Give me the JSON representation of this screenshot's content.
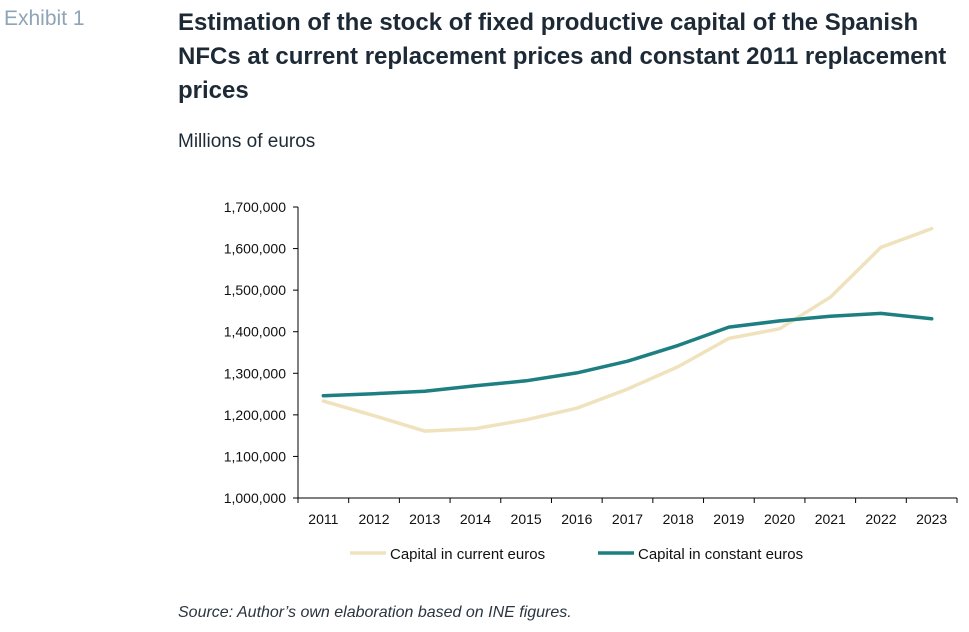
{
  "header": {
    "exhibit_label": "Exhibit 1",
    "title": "Estimation of the stock of fixed productive capital of the Spanish NFCs at current replacement prices and constant 2011 replacement prices",
    "units": "Millions of euros"
  },
  "footer": {
    "source": "Source: Author’s own elaboration based on INE figures."
  },
  "colors": {
    "current": "#efe2bd",
    "constant": "#1d7f82",
    "axis": "#000000"
  },
  "chart_data": {
    "type": "line",
    "title": "Estimation of the stock of fixed productive capital of the Spanish NFCs at current replacement prices and constant 2011 replacement prices",
    "ylabel": "Millions of euros",
    "xlabel": "",
    "x": [
      "2011",
      "2012",
      "2013",
      "2014",
      "2015",
      "2016",
      "2017",
      "2018",
      "2019",
      "2020",
      "2021",
      "2022",
      "2023"
    ],
    "ylim": [
      1000000,
      1700000
    ],
    "yticks": [
      1000000,
      1100000,
      1200000,
      1300000,
      1400000,
      1500000,
      1600000,
      1700000
    ],
    "ytick_labels": [
      "1,000,000",
      "1,100,000",
      "1,200,000",
      "1,300,000",
      "1,400,000",
      "1,500,000",
      "1,600,000",
      "1,700,000"
    ],
    "grid": false,
    "legend_position": "bottom",
    "series": [
      {
        "name": "Capital in current euros",
        "color": "#efe2bd",
        "values": [
          1233000,
          1198000,
          1161000,
          1167000,
          1188000,
          1216000,
          1262000,
          1316000,
          1384000,
          1407000,
          1483000,
          1603000,
          1648000
        ]
      },
      {
        "name": "Capital in constant euros",
        "color": "#1d7f82",
        "values": [
          1246000,
          1251000,
          1257000,
          1270000,
          1282000,
          1301000,
          1329000,
          1367000,
          1411000,
          1426000,
          1437000,
          1444000,
          1431000
        ]
      }
    ]
  }
}
